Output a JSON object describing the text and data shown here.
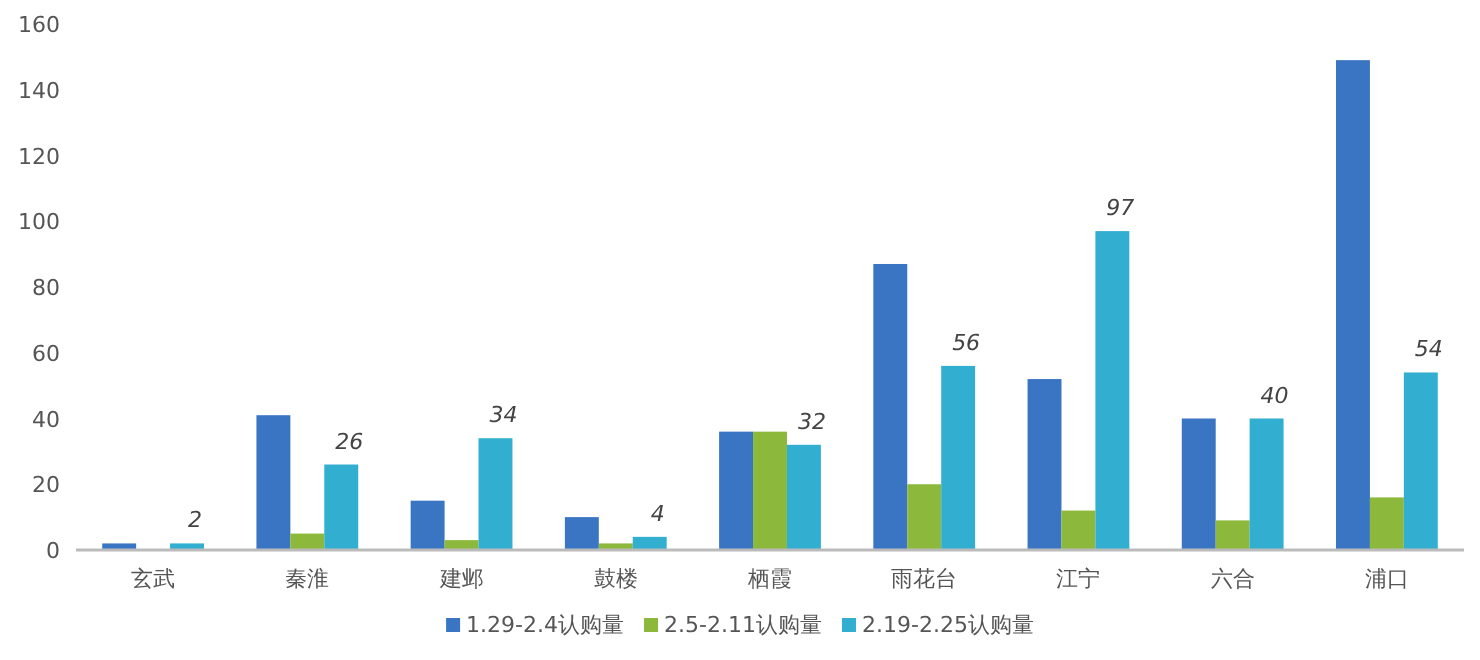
{
  "chart_data": {
    "type": "bar",
    "categories": [
      "玄武",
      "秦淮",
      "建邺",
      "鼓楼",
      "栖霞",
      "雨花台",
      "江宁",
      "六合",
      "浦口"
    ],
    "series": [
      {
        "name": "1.29-2.4认购量",
        "color": "#3a75c4",
        "values": [
          2,
          41,
          15,
          10,
          36,
          87,
          52,
          40,
          149
        ]
      },
      {
        "name": "2.5-2.11认购量",
        "color": "#8cb83c",
        "values": [
          0,
          5,
          3,
          2,
          36,
          20,
          12,
          9,
          16
        ]
      },
      {
        "name": "2.19-2.25认购量",
        "color": "#31aed0",
        "values": [
          2,
          26,
          34,
          4,
          32,
          56,
          97,
          40,
          54
        ],
        "value_labels": [
          "2",
          "26",
          "34",
          "4",
          "32",
          "56",
          "97",
          "40",
          "54"
        ]
      }
    ],
    "ylim": [
      0,
      160
    ],
    "yticks": [
      0,
      20,
      40,
      60,
      80,
      100,
      120,
      140,
      160
    ],
    "grid": false,
    "legend": "bottom"
  }
}
